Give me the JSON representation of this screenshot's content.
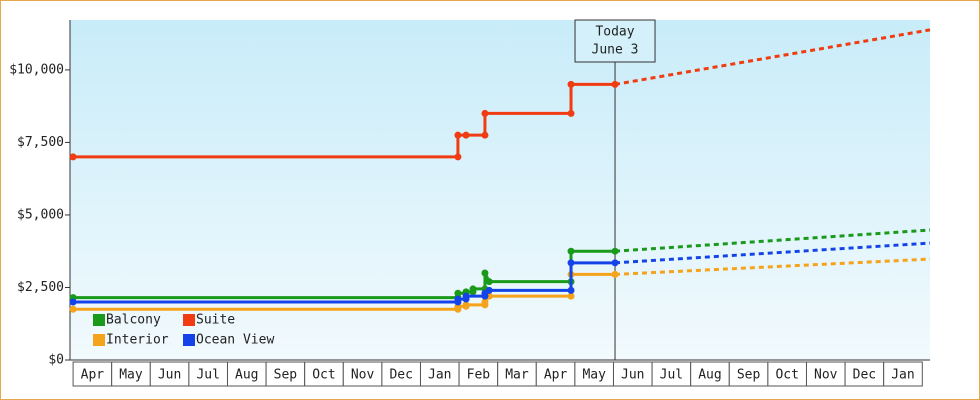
{
  "chart_data": {
    "type": "line",
    "categories": [
      "Apr",
      "May",
      "Jun",
      "Jul",
      "Aug",
      "Sep",
      "Oct",
      "Nov",
      "Dec",
      "Jan",
      "Feb",
      "Mar",
      "Apr",
      "May",
      "Jun",
      "Jul",
      "Aug",
      "Sep",
      "Oct",
      "Nov",
      "Dec",
      "Jan"
    ],
    "xlim": [
      -0.08,
      22.2
    ],
    "ylim": [
      0,
      11720
    ],
    "yticks": [
      {
        "value": 0,
        "label": "$0"
      },
      {
        "value": 2500,
        "label": "$2,500"
      },
      {
        "value": 5000,
        "label": "$5,000"
      },
      {
        "value": 7500,
        "label": "$7,500"
      },
      {
        "value": 10000,
        "label": "$10,000"
      }
    ],
    "today": {
      "x": 14.04,
      "label": [
        "Today",
        "June 3"
      ]
    },
    "legend": "bottom-left",
    "series": [
      {
        "name": "Balcony",
        "color": "#1a9a1a",
        "x": [
          0,
          9.97,
          9.97,
          10.18,
          10.18,
          10.36,
          10.36,
          10.67,
          10.67,
          10.78,
          12.9,
          12.9,
          14.04
        ],
        "values": [
          2150,
          2150,
          2300,
          2300,
          2350,
          2350,
          2450,
          2450,
          3000,
          2700,
          2700,
          3750,
          3750
        ],
        "forecast_x": [
          14.04,
          22.2
        ],
        "forecast_values": [
          3750,
          4480
        ]
      },
      {
        "name": "Suite",
        "color": "#f03c10",
        "x": [
          0,
          9.97,
          9.97,
          10.18,
          10.67,
          10.67,
          12.9,
          12.9,
          14.04
        ],
        "values": [
          7000,
          7000,
          7750,
          7750,
          7750,
          8500,
          8500,
          9500,
          9500
        ],
        "forecast_x": [
          14.04,
          22.2
        ],
        "forecast_values": [
          9500,
          11380
        ]
      },
      {
        "name": "Interior",
        "color": "#f5a31a",
        "x": [
          0,
          9.97,
          9.97,
          10.18,
          10.18,
          10.67,
          10.67,
          10.78,
          12.9,
          12.9,
          14.04
        ],
        "values": [
          1750,
          1750,
          1850,
          1850,
          1900,
          1900,
          2000,
          2200,
          2200,
          2950,
          2950
        ],
        "forecast_x": [
          14.04,
          22.2
        ],
        "forecast_values": [
          2950,
          3480
        ]
      },
      {
        "name": "Ocean View",
        "color": "#1444e8",
        "x": [
          0,
          9.97,
          9.97,
          10.18,
          10.18,
          10.67,
          10.67,
          10.78,
          12.9,
          12.9,
          14.04
        ],
        "values": [
          2000,
          2000,
          2100,
          2100,
          2200,
          2200,
          2300,
          2400,
          2400,
          3350,
          3350
        ],
        "forecast_x": [
          14.04,
          22.2
        ],
        "forecast_values": [
          3350,
          4030
        ]
      }
    ]
  }
}
